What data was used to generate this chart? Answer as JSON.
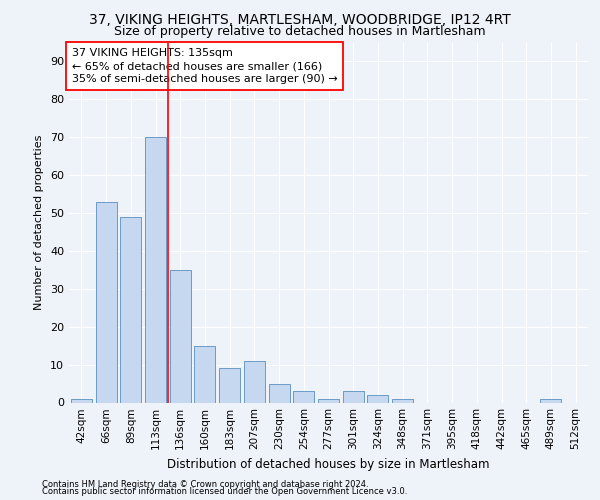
{
  "title_line1": "37, VIKING HEIGHTS, MARTLESHAM, WOODBRIDGE, IP12 4RT",
  "title_line2": "Size of property relative to detached houses in Martlesham",
  "xlabel": "Distribution of detached houses by size in Martlesham",
  "ylabel": "Number of detached properties",
  "footnote1": "Contains HM Land Registry data © Crown copyright and database right 2024.",
  "footnote2": "Contains public sector information licensed under the Open Government Licence v3.0.",
  "annotation_line1": "37 VIKING HEIGHTS: 135sqm",
  "annotation_line2": "← 65% of detached houses are smaller (166)",
  "annotation_line3": "35% of semi-detached houses are larger (90) →",
  "bar_labels": [
    "42sqm",
    "66sqm",
    "89sqm",
    "113sqm",
    "136sqm",
    "160sqm",
    "183sqm",
    "207sqm",
    "230sqm",
    "254sqm",
    "277sqm",
    "301sqm",
    "324sqm",
    "348sqm",
    "371sqm",
    "395sqm",
    "418sqm",
    "442sqm",
    "465sqm",
    "489sqm",
    "512sqm"
  ],
  "bar_values": [
    1,
    53,
    49,
    70,
    35,
    15,
    9,
    11,
    5,
    3,
    1,
    3,
    2,
    1,
    0,
    0,
    0,
    0,
    0,
    1,
    0
  ],
  "bar_color": "#c5d8ef",
  "bar_edgecolor": "#5a8fc0",
  "redline_index": 4,
  "ylim": [
    0,
    95
  ],
  "yticks": [
    0,
    10,
    20,
    30,
    40,
    50,
    60,
    70,
    80,
    90
  ],
  "bg_color": "#eef2f9",
  "plot_bg_color": "#eef2f9",
  "title_fontsize": 10,
  "subtitle_fontsize": 9,
  "annotation_box_color": "white",
  "annotation_box_edgecolor": "red",
  "xlabel_fontsize": 8.5,
  "ylabel_fontsize": 8,
  "tick_fontsize": 7.5,
  "ytick_fontsize": 8,
  "footnote_fontsize": 6.0
}
